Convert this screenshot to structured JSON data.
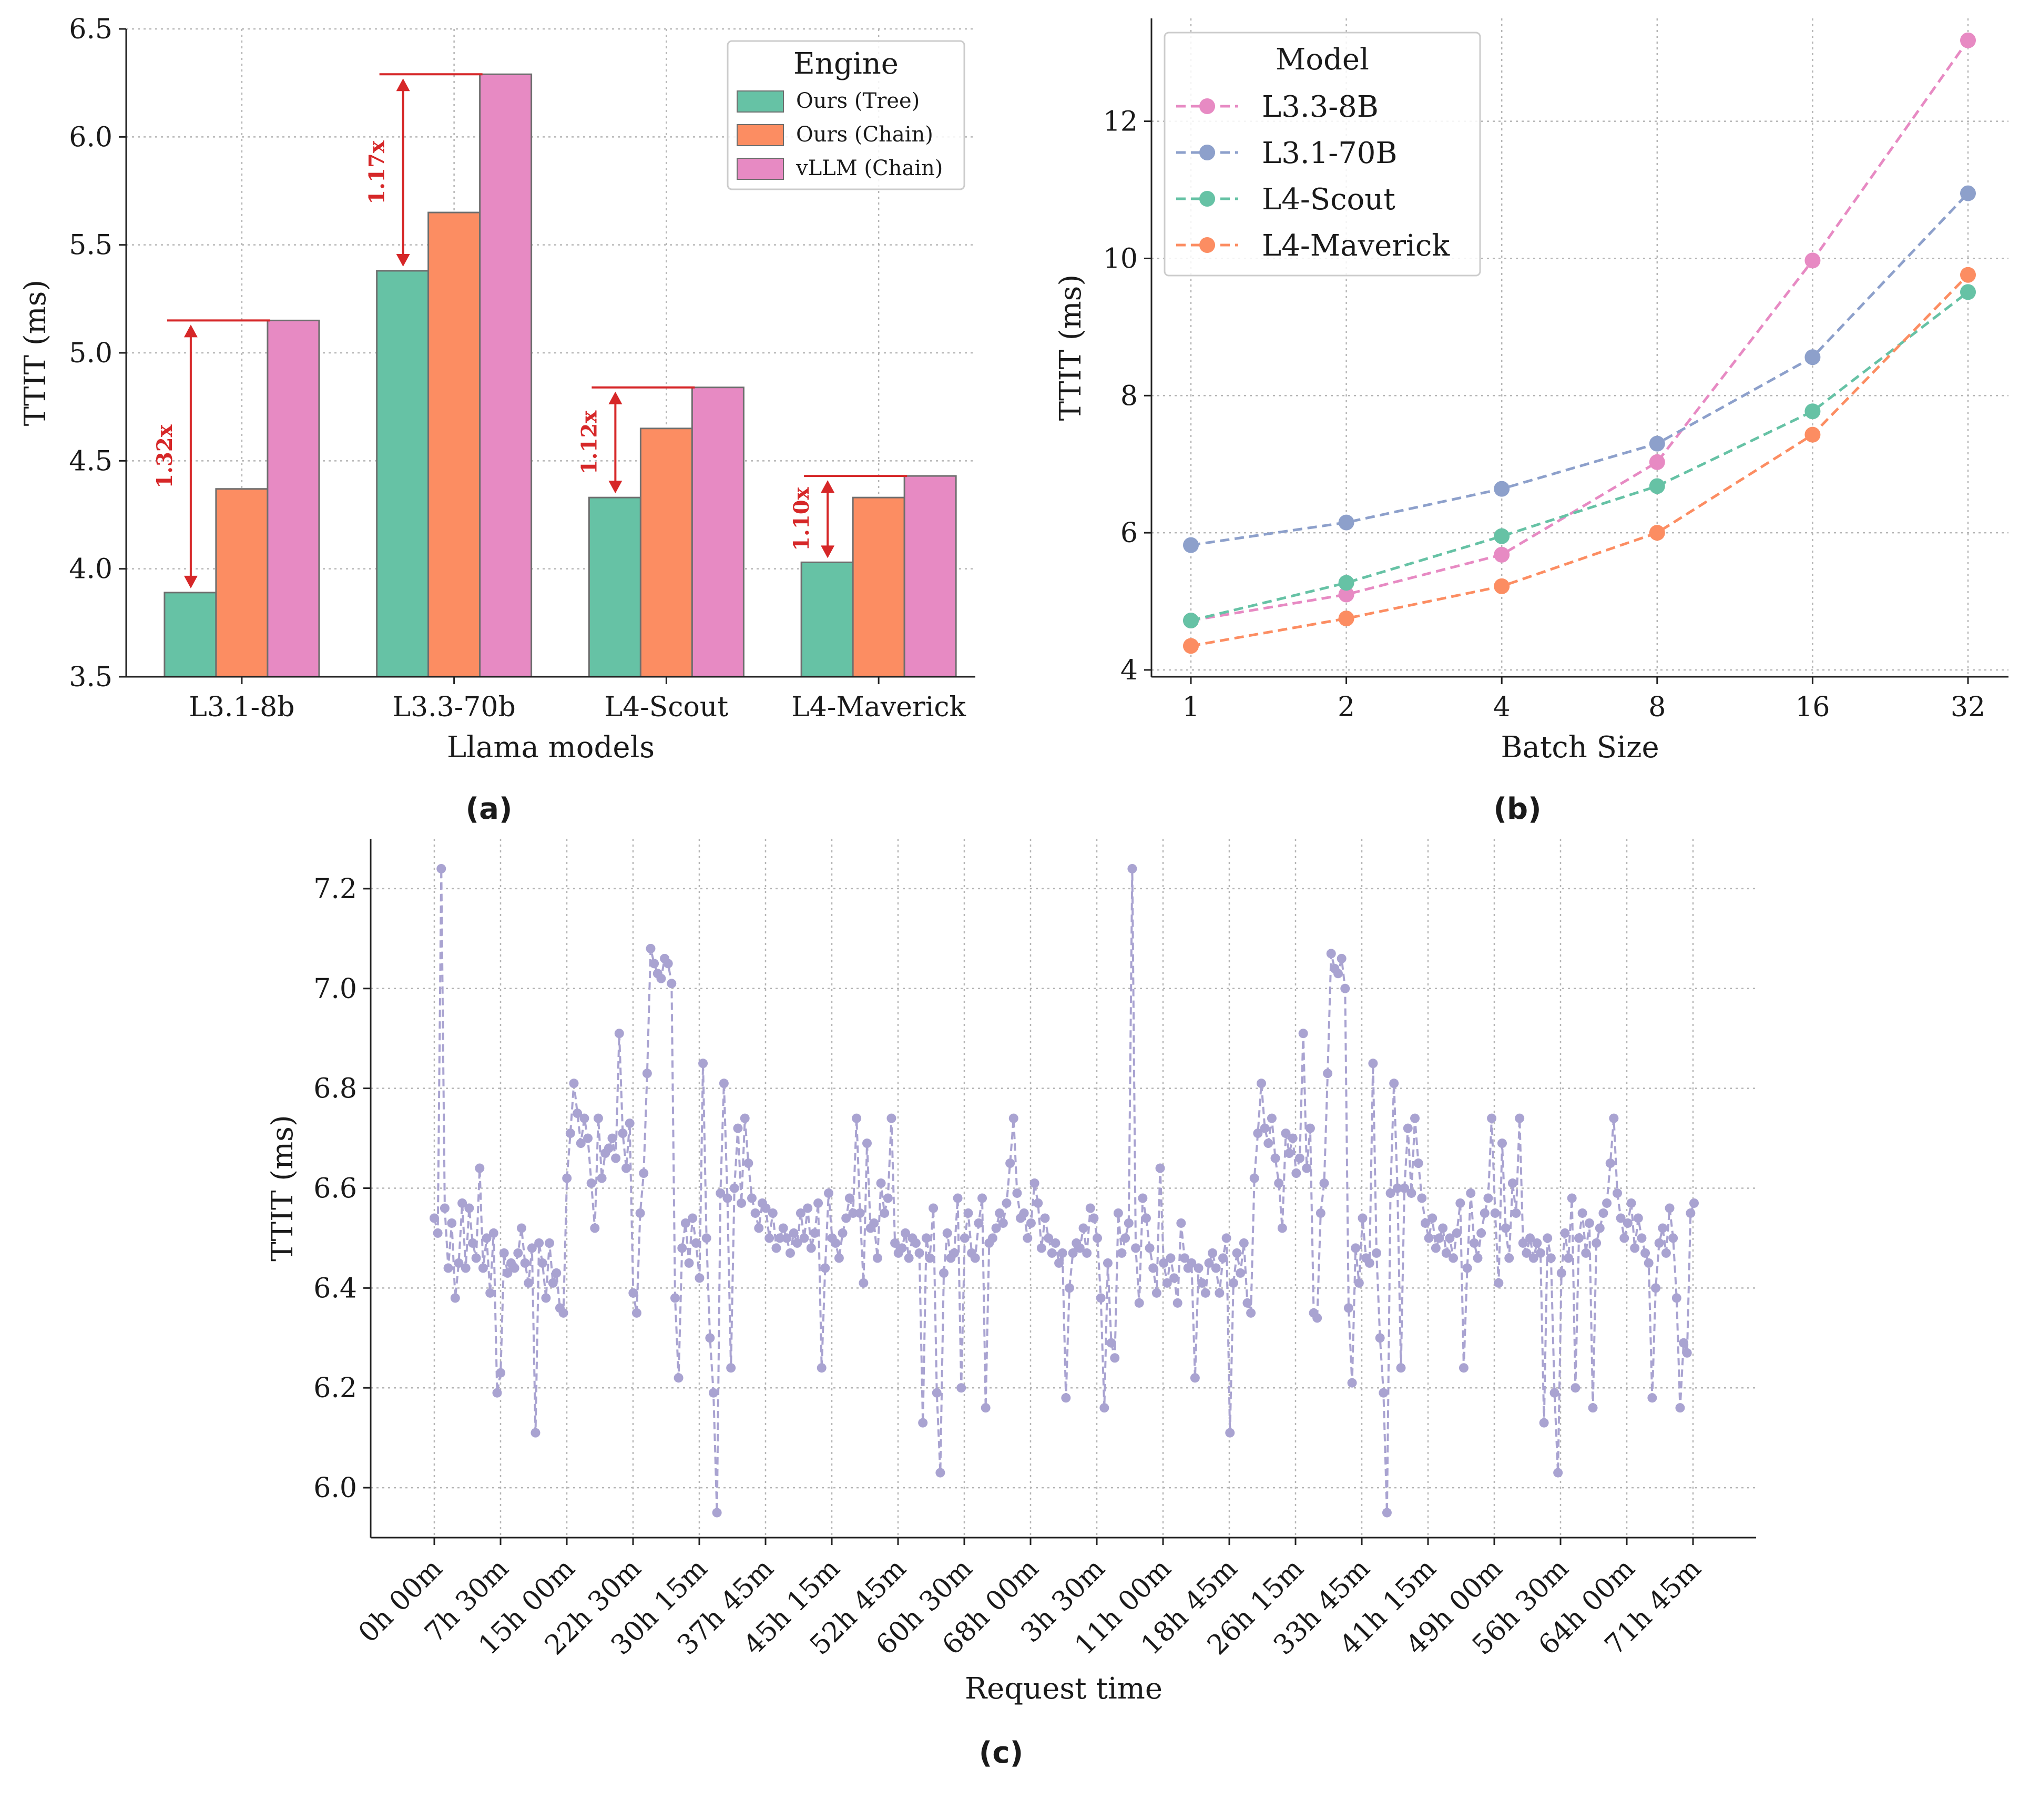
{
  "chart_data": [
    {
      "type": "bar",
      "panel": "(a)",
      "title": "",
      "xlabel": "Llama models",
      "ylabel": "TTIT (ms)",
      "ylim": [
        3.5,
        6.5
      ],
      "yticks": [
        3.5,
        4.0,
        4.5,
        5.0,
        5.5,
        6.0,
        6.5
      ],
      "categories": [
        "L3.1-8b",
        "L3.3-70b",
        "L4-Scout",
        "L4-Maverick"
      ],
      "legend_title": "Engine",
      "legend_position": "top-right",
      "series": [
        {
          "name": "Ours (Tree)",
          "color": "#66c2a5",
          "values": [
            3.89,
            5.38,
            4.33,
            4.03
          ]
        },
        {
          "name": "Ours (Chain)",
          "color": "#fc8d62",
          "values": [
            4.37,
            5.65,
            4.65,
            4.33
          ]
        },
        {
          "name": "vLLM (Chain)",
          "color": "#e78ac3",
          "values": [
            5.15,
            6.29,
            4.84,
            4.43
          ]
        }
      ],
      "annotations": [
        "1.32x",
        "1.17x",
        "1.12x",
        "1.10x"
      ],
      "annotation_color": "#d62728"
    },
    {
      "type": "line",
      "panel": "(b)",
      "title": "",
      "xlabel": "Batch Size",
      "ylabel": "TTIT (ms)",
      "x": [
        "1",
        "2",
        "4",
        "8",
        "16",
        "32"
      ],
      "ylim": [
        3.9,
        13.5
      ],
      "yticks": [
        4,
        6,
        8,
        10,
        12
      ],
      "legend_title": "Model",
      "legend_position": "top-left",
      "series": [
        {
          "name": "L3.3-8B",
          "color": "#e78ac3",
          "values": [
            4.72,
            5.1,
            5.68,
            7.03,
            9.97,
            13.18
          ]
        },
        {
          "name": "L3.1-70B",
          "color": "#8da0cb",
          "values": [
            5.82,
            6.15,
            6.64,
            7.3,
            8.56,
            10.95
          ]
        },
        {
          "name": "L4-Scout",
          "color": "#66c2a5",
          "values": [
            4.72,
            5.27,
            5.95,
            6.68,
            7.77,
            9.51
          ]
        },
        {
          "name": "L4-Maverick",
          "color": "#fc8d62",
          "values": [
            4.35,
            4.75,
            5.22,
            6.0,
            7.43,
            9.76
          ]
        }
      ]
    },
    {
      "type": "line",
      "panel": "(c)",
      "title": "",
      "xlabel": "Request time",
      "ylabel": "TTIT (ms)",
      "ylim": [
        5.9,
        7.3
      ],
      "yticks": [
        6.0,
        6.2,
        6.4,
        6.6,
        6.8,
        7.0,
        7.2
      ],
      "xticklabels": [
        "0h 00m",
        "7h 30m",
        "15h 00m",
        "22h 30m",
        "30h 15m",
        "37h 45m",
        "45h 15m",
        "52h 45m",
        "60h 30m",
        "68h 00m",
        "3h 30m",
        "11h 00m",
        "18h 45m",
        "26h 15m",
        "33h 45m",
        "41h 15m",
        "49h 00m",
        "56h 30m",
        "64h 00m",
        "71h 45m"
      ],
      "series": [
        {
          "name": "TTIT",
          "color": "#a9a3d1",
          "values": [
            6.54,
            6.51,
            7.24,
            6.56,
            6.44,
            6.53,
            6.38,
            6.45,
            6.57,
            6.44,
            6.56,
            6.49,
            6.46,
            6.64,
            6.44,
            6.5,
            6.39,
            6.51,
            6.19,
            6.23,
            6.47,
            6.43,
            6.45,
            6.44,
            6.47,
            6.52,
            6.45,
            6.41,
            6.48,
            6.11,
            6.49,
            6.45,
            6.38,
            6.49,
            6.41,
            6.43,
            6.36,
            6.35,
            6.62,
            6.71,
            6.81,
            6.75,
            6.69,
            6.74,
            6.7,
            6.61,
            6.52,
            6.74,
            6.62,
            6.67,
            6.68,
            6.7,
            6.66,
            6.91,
            6.71,
            6.64,
            6.73,
            6.39,
            6.35,
            6.55,
            6.63,
            6.83,
            7.08,
            7.05,
            7.03,
            7.02,
            7.06,
            7.05,
            7.01,
            6.38,
            6.22,
            6.48,
            6.53,
            6.45,
            6.54,
            6.49,
            6.42,
            6.85,
            6.5,
            6.3,
            6.19,
            5.95,
            6.59,
            6.81,
            6.58,
            6.24,
            6.6,
            6.72,
            6.57,
            6.74,
            6.65,
            6.58,
            6.55,
            6.52,
            6.57,
            6.56,
            6.5,
            6.55,
            6.48,
            6.5,
            6.52,
            6.5,
            6.47,
            6.51,
            6.49,
            6.55,
            6.5,
            6.56,
            6.48,
            6.51,
            6.57,
            6.24,
            6.44,
            6.59,
            6.5,
            6.49,
            6.46,
            6.51,
            6.54,
            6.58,
            6.55,
            6.74,
            6.55,
            6.41,
            6.69,
            6.52,
            6.53,
            6.46,
            6.61,
            6.55,
            6.58,
            6.74,
            6.49,
            6.47,
            6.48,
            6.51,
            6.46,
            6.5,
            6.49,
            6.47,
            6.13,
            6.5,
            6.46,
            6.56,
            6.19,
            6.03,
            6.43,
            6.51,
            6.46,
            6.47,
            6.58,
            6.2,
            6.5,
            6.55,
            6.47,
            6.46,
            6.53,
            6.58,
            6.16,
            6.49,
            6.5,
            6.52,
            6.55,
            6.53,
            6.57,
            6.65,
            6.74,
            6.59,
            6.54,
            6.55,
            6.5,
            6.53,
            6.61,
            6.57,
            6.48,
            6.54,
            6.5,
            6.47,
            6.49,
            6.45,
            6.47,
            6.18,
            6.4,
            6.47,
            6.49,
            6.48,
            6.52,
            6.47,
            6.56,
            6.54,
            6.5,
            6.38,
            6.16,
            6.45,
            6.29,
            6.26,
            6.55,
            6.47,
            6.5,
            6.53,
            7.24,
            6.48,
            6.37,
            6.58,
            6.54,
            6.48,
            6.44,
            6.39,
            6.64,
            6.45,
            6.41,
            6.46,
            6.42,
            6.37,
            6.53,
            6.46,
            6.44,
            6.45,
            6.22,
            6.44,
            6.41,
            6.39,
            6.45,
            6.47,
            6.44,
            6.39,
            6.46,
            6.5,
            6.11,
            6.41,
            6.47,
            6.43,
            6.49,
            6.37,
            6.35,
            6.62,
            6.71,
            6.81,
            6.72,
            6.69,
            6.74,
            6.66,
            6.61,
            6.52,
            6.71,
            6.67,
            6.7,
            6.63,
            6.66,
            6.91,
            6.64,
            6.72,
            6.35,
            6.34,
            6.55,
            6.61,
            6.83,
            7.07,
            7.04,
            7.03,
            7.06,
            7.0,
            6.36,
            6.21,
            6.48,
            6.41,
            6.54,
            6.46,
            6.45,
            6.85,
            6.47,
            6.3,
            6.19,
            5.95,
            6.59,
            6.81,
            6.6,
            6.24,
            6.6,
            6.72,
            6.59,
            6.74,
            6.65,
            6.58,
            6.53,
            6.5,
            6.54,
            6.48,
            6.5,
            6.52,
            6.47,
            6.5,
            6.46,
            6.51,
            6.57,
            6.24,
            6.44,
            6.59,
            6.49,
            6.46,
            6.51,
            6.55,
            6.58,
            6.74,
            6.55,
            6.41,
            6.69,
            6.52,
            6.46,
            6.61,
            6.55,
            6.74,
            6.49,
            6.47,
            6.5,
            6.46,
            6.49,
            6.47,
            6.13,
            6.5,
            6.46,
            6.19,
            6.03,
            6.43,
            6.51,
            6.46,
            6.58,
            6.2,
            6.5,
            6.55,
            6.47,
            6.53,
            6.16,
            6.49,
            6.52,
            6.55,
            6.57,
            6.65,
            6.74,
            6.59,
            6.54,
            6.5,
            6.53,
            6.57,
            6.48,
            6.54,
            6.5,
            6.47,
            6.45,
            6.18,
            6.4,
            6.49,
            6.52,
            6.47,
            6.56,
            6.5,
            6.38,
            6.16,
            6.29,
            6.27,
            6.55,
            6.57
          ]
        }
      ]
    }
  ]
}
